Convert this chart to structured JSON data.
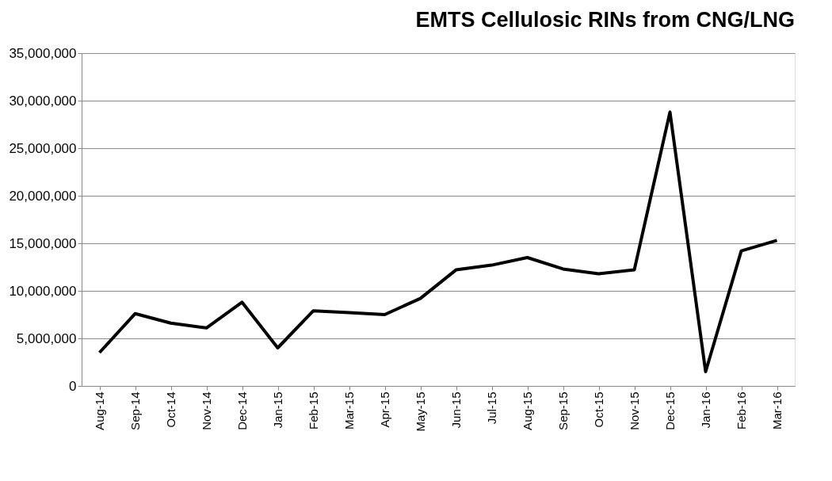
{
  "chart_data": {
    "type": "line",
    "title": "EMTS Cellulosic RINs from CNG/LNG",
    "categories": [
      "Aug-14",
      "Sep-14",
      "Oct-14",
      "Nov-14",
      "Dec-14",
      "Jan-15",
      "Feb-15",
      "Mar-15",
      "Apr-15",
      "May-15",
      "Jun-15",
      "Jul-15",
      "Aug-15",
      "Sep-15",
      "Oct-15",
      "Nov-15",
      "Dec-15",
      "Jan-16",
      "Feb-16",
      "Mar-16"
    ],
    "series": [
      {
        "color": "#000000",
        "values": [
          3500000,
          7600000,
          6600000,
          6100000,
          8800000,
          4000000,
          7900000,
          7700000,
          7500000,
          9200000,
          12200000,
          12700000,
          13500000,
          12300000,
          11800000,
          12200000,
          28800000,
          1500000,
          14200000,
          15300000
        ]
      }
    ],
    "ylim": [
      0,
      35000000
    ],
    "yticks": [
      {
        "value": 0,
        "label": "0"
      },
      {
        "value": 5000000,
        "label": "5,000,000"
      },
      {
        "value": 10000000,
        "label": "10,000,000"
      },
      {
        "value": 15000000,
        "label": "15,000,000"
      },
      {
        "value": 20000000,
        "label": "20,000,000"
      },
      {
        "value": 25000000,
        "label": "25,000,000"
      },
      {
        "value": 30000000,
        "label": "30,000,000"
      },
      {
        "value": 35000000,
        "label": "35,000,000"
      }
    ],
    "grid": "y",
    "marker": "none",
    "line_style": "solid"
  }
}
